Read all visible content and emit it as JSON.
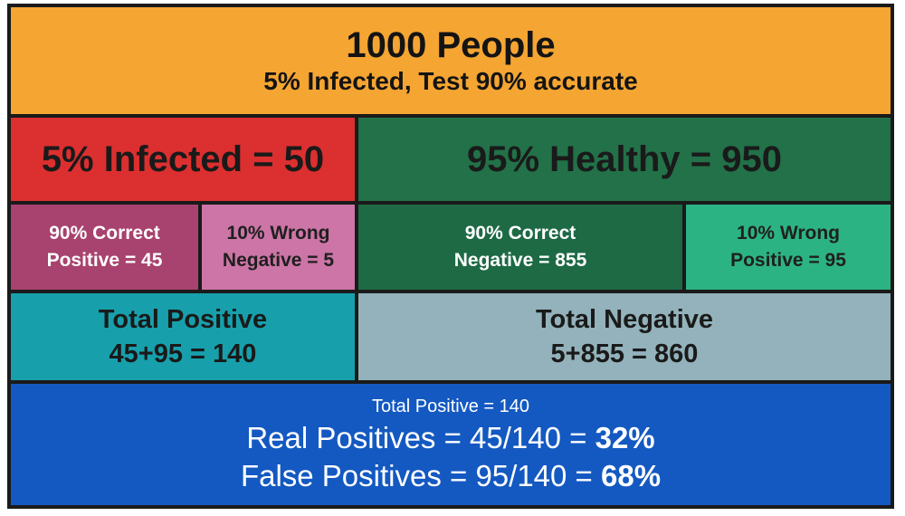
{
  "header": {
    "title": "1000 People",
    "subtitle_bold": "5% Infected",
    "subtitle_rest": ", Test 90% accurate"
  },
  "infected": {
    "label": "5% Infected = 50",
    "color": "#dc2f2f"
  },
  "healthy": {
    "label": "95% Healthy = 950",
    "color": "#227148"
  },
  "breakdown": [
    {
      "line1": "90% Correct",
      "line2": "Positive = 45"
    },
    {
      "line1": "10% Wrong",
      "line2": "Negative = 5"
    },
    {
      "line1": "90% Correct",
      "line2": "Negative = 855"
    },
    {
      "line1": "10% Wrong",
      "line2": "Positive = 95"
    }
  ],
  "totals": {
    "positive": {
      "label": "Total Positive",
      "calc": "45+95 = 140"
    },
    "negative": {
      "label": "Total Negative",
      "calc": "5+855 = 860"
    }
  },
  "summary": {
    "small": "Total Positive = 140",
    "real_prefix": "Real Positives = 45/140 = ",
    "real_pct": "32%",
    "false_prefix": "False Positives = 95/140 = ",
    "false_pct": "68%"
  }
}
